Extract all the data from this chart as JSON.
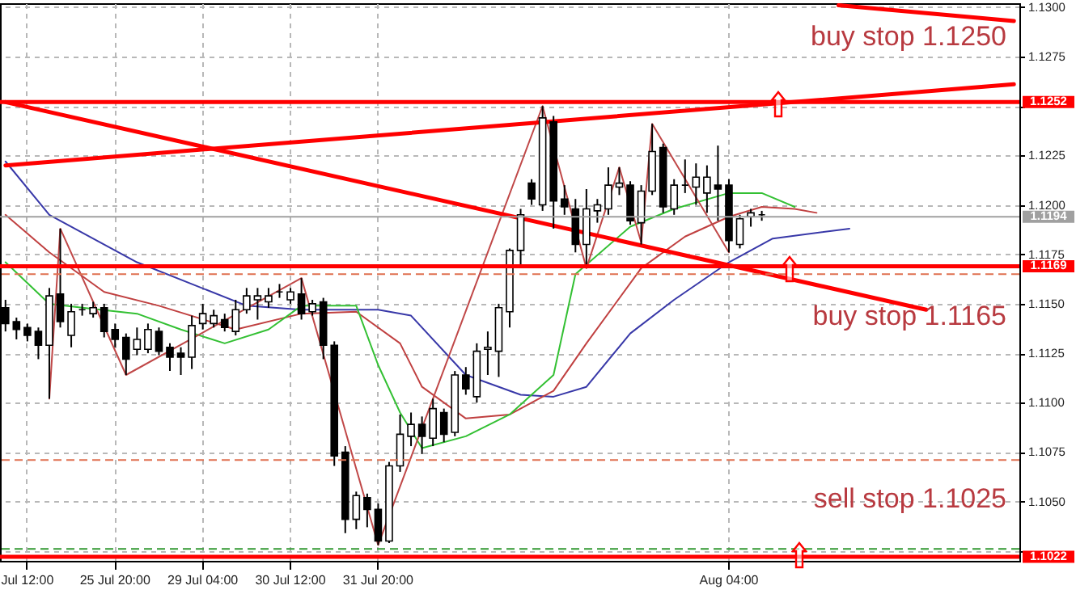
{
  "chart_data": {
    "type": "candlestick",
    "annotations": [
      "buy stop 1.1250",
      "buy stop 1.1165",
      "sell stop 1.1025"
    ],
    "categories": [
      null,
      null,
      "Jul 12:00",
      null,
      null,
      null,
      null,
      null,
      null,
      null,
      "25 Jul 20:00",
      null,
      null,
      null,
      null,
      null,
      null,
      null,
      "29 Jul 04:00",
      null,
      null,
      null,
      null,
      null,
      null,
      null,
      "30 Jul 12:00",
      null,
      null,
      null,
      null,
      null,
      null,
      null,
      "31 Jul 20:00",
      null,
      null,
      null,
      null,
      null,
      null,
      null,
      null,
      null,
      null,
      null,
      null,
      null,
      null,
      null,
      null,
      null,
      null,
      null,
      null,
      null,
      null,
      null,
      null,
      null,
      null,
      null,
      null,
      null,
      null,
      null,
      "Aug 04:00",
      null,
      null,
      null,
      null,
      null,
      null,
      null,
      null,
      null,
      null,
      null,
      null,
      null,
      null,
      null,
      null,
      null,
      null,
      null,
      null,
      null,
      null,
      null,
      null,
      null,
      null
    ],
    "ohlc": [
      [
        1.1148,
        1.1152,
        1.1136,
        1.114
      ],
      [
        1.1141,
        1.1143,
        1.1132,
        1.1137
      ],
      [
        1.1138,
        1.114,
        1.1131,
        1.1134
      ],
      [
        1.1136,
        1.1138,
        1.1122,
        1.1129
      ],
      [
        1.1129,
        1.1158,
        1.1102,
        1.1154
      ],
      [
        1.1155,
        1.1188,
        1.1138,
        1.1141
      ],
      [
        1.1134,
        1.115,
        1.1128,
        1.1146
      ],
      [
        1.1147,
        1.115,
        1.1144,
        1.1147
      ],
      [
        1.1145,
        1.1151,
        1.1143,
        1.1148
      ],
      [
        1.1148,
        1.115,
        1.1133,
        1.1136
      ],
      [
        1.1137,
        1.114,
        1.1128,
        1.1132
      ],
      [
        1.1133,
        1.1135,
        1.1114,
        1.1122
      ],
      [
        1.1127,
        1.1138,
        1.1124,
        1.1132
      ],
      [
        1.1127,
        1.114,
        1.1125,
        1.1137
      ],
      [
        1.1136,
        1.1138,
        1.1124,
        1.1126
      ],
      [
        1.1128,
        1.113,
        1.1116,
        1.1123
      ],
      [
        1.1125,
        1.1128,
        1.1114,
        1.1123
      ],
      [
        1.1123,
        1.1144,
        1.1117,
        1.1139
      ],
      [
        1.114,
        1.115,
        1.1137,
        1.1145
      ],
      [
        1.114,
        1.1147,
        1.1138,
        1.1144
      ],
      [
        1.1142,
        1.1145,
        1.1136,
        1.1138
      ],
      [
        1.1136,
        1.1152,
        1.1134,
        1.1147
      ],
      [
        1.1147,
        1.1158,
        1.1145,
        1.1154
      ],
      [
        1.1152,
        1.1158,
        1.1142,
        1.1154
      ],
      [
        1.1151,
        1.1158,
        1.1148,
        1.1154
      ],
      [
        1.1156,
        1.116,
        1.1153,
        1.1156
      ],
      [
        1.1152,
        1.1158,
        1.115,
        1.1156
      ],
      [
        1.1155,
        1.1163,
        1.1142,
        1.1145
      ],
      [
        1.1146,
        1.1152,
        1.1144,
        1.115
      ],
      [
        1.1151,
        1.1153,
        1.1122,
        1.1129
      ],
      [
        1.1129,
        1.1131,
        1.1068,
        1.1073
      ],
      [
        1.1075,
        1.1078,
        1.1034,
        1.1041
      ],
      [
        1.1041,
        1.1055,
        1.1036,
        1.1053
      ],
      [
        1.1052,
        1.1054,
        1.1037,
        1.1046
      ],
      [
        1.1046,
        1.1049,
        1.1028,
        1.103
      ],
      [
        1.103,
        1.107,
        1.1029,
        1.1068
      ],
      [
        1.1068,
        1.1094,
        1.1065,
        1.1084
      ],
      [
        1.1083,
        1.1095,
        1.1078,
        1.1089
      ],
      [
        1.1089,
        1.1093,
        1.1074,
        1.1083
      ],
      [
        1.1082,
        1.1102,
        1.1078,
        1.1097
      ],
      [
        1.1095,
        1.1097,
        1.108,
        1.1084
      ],
      [
        1.1085,
        1.1116,
        1.1083,
        1.1114
      ],
      [
        1.1114,
        1.1118,
        1.1104,
        1.1107
      ],
      [
        1.1103,
        1.113,
        1.11,
        1.1126
      ],
      [
        1.1127,
        1.1136,
        1.1114,
        1.1128
      ],
      [
        1.1126,
        1.115,
        1.1113,
        1.1148
      ],
      [
        1.1146,
        1.1178,
        1.1138,
        1.1177
      ],
      [
        1.1177,
        1.1198,
        1.117,
        1.1195
      ],
      [
        1.1211,
        1.1213,
        1.12,
        1.1203
      ],
      [
        1.12,
        1.125,
        1.1197,
        1.1244
      ],
      [
        1.1242,
        1.1245,
        1.1188,
        1.1202
      ],
      [
        1.1203,
        1.121,
        1.1195,
        1.1199
      ],
      [
        1.1198,
        1.1203,
        1.1176,
        1.118
      ],
      [
        1.118,
        1.1208,
        1.1168,
        1.1198
      ],
      [
        1.1197,
        1.1203,
        1.1191,
        1.12
      ],
      [
        1.1198,
        1.1219,
        1.1195,
        1.121
      ],
      [
        1.1209,
        1.1219,
        1.1205,
        1.1211
      ],
      [
        1.121,
        1.1212,
        1.119,
        1.1192
      ],
      [
        1.1191,
        1.121,
        1.118,
        1.1207
      ],
      [
        1.1207,
        1.1241,
        1.1205,
        1.1227
      ],
      [
        1.1229,
        1.1231,
        1.1196,
        1.1199
      ],
      [
        1.1198,
        1.1213,
        1.1195,
        1.121
      ],
      [
        1.121,
        1.1223,
        1.1206,
        1.121
      ],
      [
        1.1209,
        1.1221,
        1.12,
        1.1214
      ],
      [
        1.1206,
        1.122,
        1.1196,
        1.1214
      ],
      [
        1.121,
        1.123,
        1.1192,
        1.1208
      ],
      [
        1.121,
        1.1213,
        1.1176,
        1.1182
      ],
      [
        1.118,
        1.1195,
        1.1178,
        1.1193
      ],
      [
        1.1194,
        1.1198,
        1.1189,
        1.1196
      ],
      [
        1.1195,
        1.1197,
        1.1192,
        1.1195
      ],
      null,
      null,
      null,
      null,
      null,
      null,
      null,
      null,
      null,
      null,
      null,
      null,
      null,
      null,
      null,
      null,
      null,
      null,
      null,
      null,
      null,
      null,
      null
    ],
    "series": [
      {
        "type": "line",
        "color": "#3838a8",
        "values": [
          1.1222,
          null,
          null,
          null,
          1.1195,
          null,
          null,
          null,
          null,
          null,
          null,
          null,
          1.1171,
          null,
          null,
          null,
          null,
          null,
          null,
          null,
          null,
          null,
          1.1149,
          null,
          null,
          null,
          null,
          1.1147,
          null,
          null,
          null,
          null,
          null,
          null,
          1.1147,
          null,
          null,
          1.1144,
          null,
          null,
          null,
          null,
          1.1114,
          null,
          null,
          null,
          null,
          1.1104,
          null,
          null,
          1.1103,
          null,
          null,
          1.1108,
          null,
          null,
          null,
          1.1135,
          null,
          null,
          null,
          1.1152,
          null,
          null,
          null,
          null,
          1.1171,
          null,
          null,
          null,
          1.1183,
          null,
          null,
          null,
          null,
          null,
          null,
          1.1188,
          null,
          null,
          null,
          null,
          null,
          null,
          null,
          null,
          null,
          null,
          null,
          null,
          null,
          null,
          null
        ]
      },
      {
        "type": "line",
        "color": "#c04040",
        "values": [
          1.1195,
          null,
          null,
          null,
          1.1176,
          null,
          null,
          null,
          null,
          1.1156,
          null,
          null,
          null,
          null,
          1.1149,
          null,
          null,
          null,
          null,
          null,
          null,
          1.1137,
          null,
          null,
          null,
          null,
          null,
          1.1145,
          null,
          null,
          null,
          null,
          1.1146,
          null,
          null,
          null,
          1.113,
          null,
          1.1108,
          null,
          null,
          null,
          1.1092,
          null,
          null,
          null,
          1.1094,
          null,
          null,
          null,
          1.1106,
          null,
          null,
          1.113,
          null,
          null,
          null,
          null,
          1.1168,
          null,
          null,
          null,
          1.1184,
          null,
          null,
          null,
          1.1194,
          null,
          null,
          1.1199,
          null,
          null,
          1.1198,
          null,
          1.1196,
          null,
          null,
          null,
          null,
          null,
          null,
          null,
          null,
          null,
          null,
          null,
          null,
          null,
          null,
          null,
          null,
          null,
          null
        ]
      },
      {
        "type": "line",
        "color": "#33c033",
        "values": [
          1.1171,
          null,
          null,
          null,
          1.115,
          null,
          null,
          1.1148,
          null,
          null,
          null,
          null,
          1.1145,
          null,
          null,
          null,
          1.1137,
          null,
          null,
          null,
          1.113,
          null,
          null,
          null,
          1.1137,
          null,
          null,
          1.1149,
          null,
          null,
          null,
          null,
          1.1149,
          null,
          1.1119,
          null,
          1.1095,
          null,
          1.1077,
          null,
          null,
          null,
          1.1083,
          null,
          null,
          null,
          1.1094,
          null,
          null,
          null,
          1.1114,
          null,
          1.1165,
          null,
          null,
          null,
          null,
          1.1189,
          null,
          null,
          null,
          1.1198,
          null,
          null,
          null,
          null,
          1.1206,
          null,
          null,
          1.1206,
          null,
          null,
          1.1199,
          null,
          null,
          null,
          null,
          null,
          null,
          null,
          null,
          null,
          null,
          null,
          null,
          null,
          null,
          null,
          null,
          null,
          null,
          null,
          null
        ]
      },
      {
        "type": "line",
        "color": "#c04848",
        "values": [
          null,
          null,
          null,
          null,
          1.1102,
          1.1188,
          null,
          null,
          null,
          null,
          null,
          1.1114,
          null,
          null,
          null,
          null,
          null,
          null,
          null,
          null,
          null,
          null,
          null,
          null,
          null,
          null,
          null,
          1.1163,
          null,
          null,
          null,
          null,
          null,
          null,
          1.1028,
          null,
          null,
          null,
          null,
          null,
          null,
          null,
          null,
          null,
          null,
          null,
          null,
          null,
          null,
          1.125,
          null,
          null,
          null,
          1.1168,
          null,
          null,
          1.1219,
          null,
          1.1181,
          1.1241,
          null,
          null,
          null,
          null,
          null,
          null,
          1.1176,
          null,
          null,
          null,
          null,
          null,
          null,
          null,
          null,
          null,
          null,
          null,
          null,
          null,
          null,
          null,
          null,
          null,
          null,
          null,
          null,
          null,
          null,
          null,
          null,
          null,
          null
        ]
      },
      {
        "type": "line",
        "color": "#ff0000",
        "values": [
          1.1252,
          null,
          null,
          null,
          null,
          null,
          null,
          null,
          null,
          null,
          null,
          null,
          null,
          null,
          null,
          null,
          null,
          null,
          null,
          null,
          null,
          null,
          null,
          null,
          null,
          null,
          null,
          null,
          null,
          null,
          null,
          null,
          null,
          null,
          null,
          null,
          null,
          null,
          null,
          null,
          null,
          null,
          null,
          null,
          null,
          null,
          null,
          null,
          null,
          null,
          null,
          null,
          null,
          null,
          null,
          null,
          null,
          null,
          null,
          null,
          null,
          null,
          null,
          null,
          null,
          null,
          null,
          null,
          null,
          null,
          null,
          null,
          null,
          null,
          null,
          null,
          null,
          null,
          null,
          null,
          null,
          null,
          null,
          null,
          1.1147,
          null,
          null,
          null,
          null,
          null,
          null,
          null,
          null
        ]
      },
      {
        "type": "line",
        "color": "#ff0000",
        "values": [
          1.122,
          null,
          null,
          null,
          null,
          null,
          null,
          null,
          null,
          null,
          null,
          null,
          null,
          null,
          null,
          null,
          null,
          null,
          null,
          null,
          null,
          null,
          null,
          null,
          null,
          null,
          null,
          null,
          null,
          null,
          null,
          null,
          null,
          null,
          null,
          null,
          null,
          null,
          null,
          null,
          null,
          null,
          null,
          null,
          null,
          null,
          null,
          null,
          null,
          null,
          null,
          null,
          null,
          null,
          null,
          null,
          null,
          null,
          null,
          null,
          null,
          null,
          null,
          null,
          null,
          null,
          null,
          null,
          null,
          null,
          null,
          null,
          null,
          null,
          null,
          null,
          null,
          null,
          null,
          null,
          null,
          null,
          null,
          null,
          null,
          null,
          null,
          null,
          null,
          null,
          null,
          null,
          1.1261
        ]
      },
      {
        "type": "line",
        "color": "#ff0000",
        "values": [
          null,
          null,
          null,
          null,
          null,
          null,
          null,
          null,
          null,
          null,
          null,
          null,
          null,
          null,
          null,
          null,
          null,
          null,
          null,
          null,
          null,
          null,
          null,
          null,
          null,
          null,
          null,
          null,
          null,
          null,
          null,
          null,
          null,
          null,
          null,
          null,
          null,
          null,
          null,
          null,
          null,
          null,
          null,
          null,
          null,
          null,
          null,
          null,
          null,
          null,
          null,
          null,
          null,
          null,
          null,
          null,
          null,
          null,
          null,
          null,
          null,
          null,
          null,
          null,
          null,
          null,
          null,
          null,
          null,
          null,
          null,
          null,
          null,
          null,
          null,
          null,
          1.1301,
          null,
          null,
          null,
          null,
          null,
          null,
          null,
          null,
          null,
          null,
          null,
          null,
          null,
          null,
          null,
          1.1293
        ]
      }
    ],
    "ylim": [
      1.102,
      1.1302
    ],
    "yticks": [
      {
        "value": 1.1025,
        "label": null
      },
      {
        "value": 1.105,
        "label": "1.1050"
      },
      {
        "value": 1.1075,
        "label": "1.1075"
      },
      {
        "value": 1.11,
        "label": "1.1100"
      },
      {
        "value": 1.1125,
        "label": "1.1125"
      },
      {
        "value": 1.115,
        "label": "1.1150"
      },
      {
        "value": 1.1175,
        "label": "1.1175"
      },
      {
        "value": 1.12,
        "label": "1.1200"
      },
      {
        "value": 1.1225,
        "label": "1.1225"
      },
      {
        "value": 1.125,
        "label": null
      },
      {
        "value": 1.1275,
        "label": "1.1275"
      },
      {
        "value": 1.13,
        "label": "1.1300"
      }
    ],
    "ref_lines": [
      {
        "axis": "y",
        "value": 1.1252,
        "label": "1.1252",
        "color": "#ff0000"
      },
      {
        "axis": "y",
        "value": 1.1169,
        "label": "1.1169",
        "color": "#ff0000"
      },
      {
        "axis": "y",
        "value": 1.1022,
        "label": "1.1022",
        "color": "#ff0000"
      },
      {
        "axis": "y",
        "value": 1.1194,
        "label": "1.1194",
        "color": "#a0a0a0",
        "line_style": "solid"
      },
      {
        "axis": "y",
        "value": 1.1165,
        "color": "#e07050",
        "line_style": "dashed"
      },
      {
        "axis": "y",
        "value": 1.1071,
        "color": "#e07050",
        "line_style": "dashed"
      },
      {
        "axis": "y",
        "value": 1.1026,
        "color": "#339933",
        "line_style": "dashed"
      }
    ],
    "grid": true
  }
}
